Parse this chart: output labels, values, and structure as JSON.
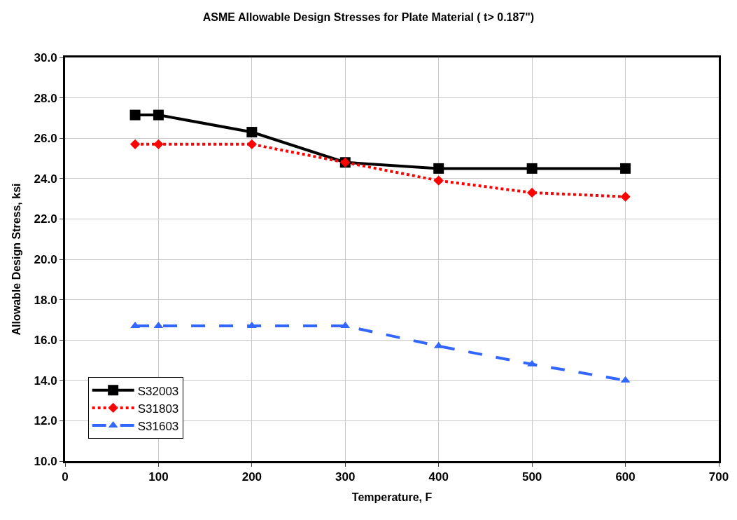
{
  "chart_data": {
    "type": "line",
    "title": "ASME Allowable Design Stresses for Plate Material ( t> 0.187\")",
    "xlabel": "Temperature, F",
    "ylabel": "Allowable Design Stress, ksi",
    "x": [
      75,
      100,
      200,
      300,
      400,
      500,
      600
    ],
    "series": [
      {
        "name": "S32003",
        "color": "#000000",
        "marker": "square",
        "line_style": "solid",
        "values": [
          27.15,
          27.15,
          26.3,
          24.8,
          24.5,
          24.5,
          24.5
        ]
      },
      {
        "name": "S31803",
        "color": "#ff0000",
        "marker": "diamond",
        "line_style": "dotted",
        "values": [
          25.7,
          25.7,
          25.7,
          24.8,
          23.9,
          23.3,
          23.1
        ]
      },
      {
        "name": "S31603",
        "color": "#3366ff",
        "marker": "triangle",
        "line_style": "dashed",
        "values": [
          16.7,
          16.7,
          16.7,
          16.7,
          15.7,
          14.8,
          14.0
        ]
      }
    ],
    "xlim": [
      0,
      700
    ],
    "xticks": [
      0,
      100,
      200,
      300,
      400,
      500,
      600,
      700
    ],
    "ylim": [
      10,
      30
    ],
    "yticks": [
      {
        "value": 10,
        "label": "10.0"
      },
      {
        "value": 12,
        "label": "12.0"
      },
      {
        "value": 14,
        "label": "14.0"
      },
      {
        "value": 16,
        "label": "16.0"
      },
      {
        "value": 18,
        "label": "18.0"
      },
      {
        "value": 20,
        "label": "20.0"
      },
      {
        "value": 22,
        "label": "22.0"
      },
      {
        "value": 24,
        "label": "24.0"
      },
      {
        "value": 26,
        "label": "26.0"
      },
      {
        "value": 28,
        "label": "28.0"
      },
      {
        "value": 30,
        "label": "30.0"
      }
    ],
    "grid": true,
    "legend": "bottom left"
  }
}
